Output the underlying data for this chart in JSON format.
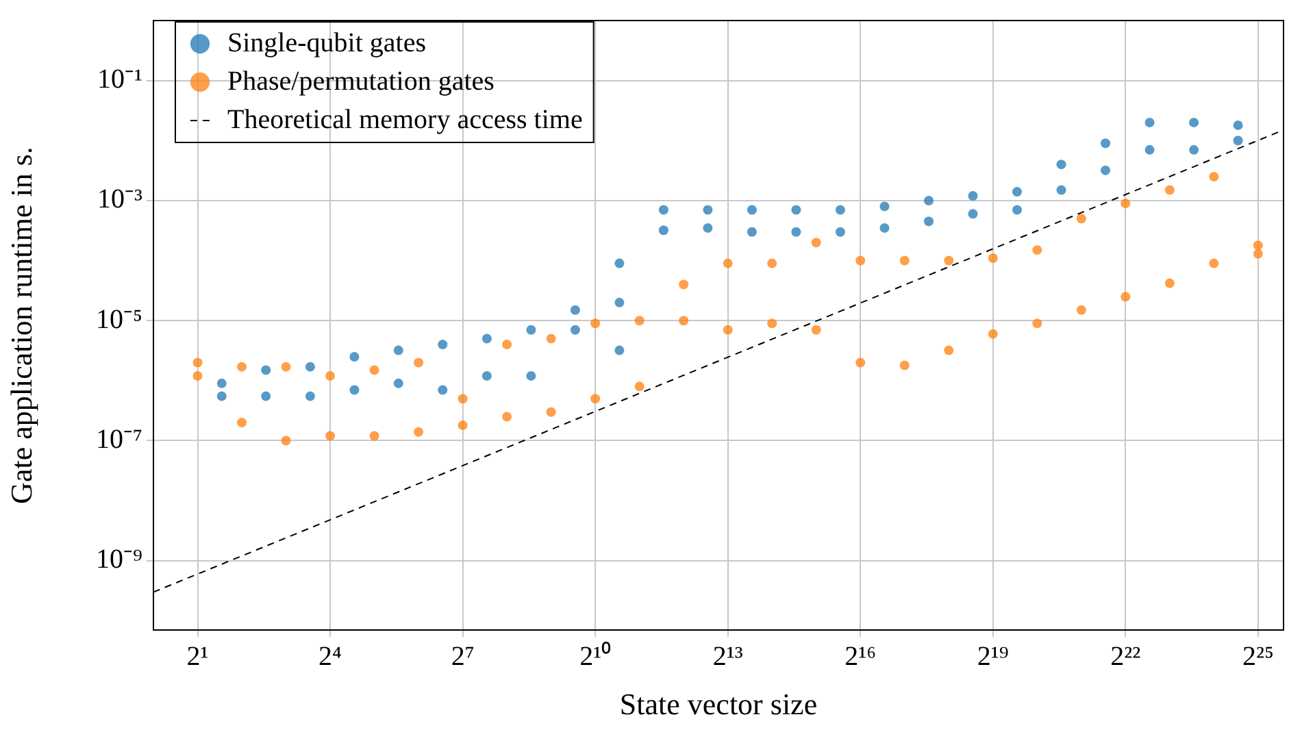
{
  "chart_data": {
    "type": "scatter",
    "xlabel": "State vector size",
    "ylabel": "Gate application runtime in s.",
    "log": "xy",
    "grid": true,
    "legend": "top left",
    "marker": "circle",
    "xlim": [
      1,
      50000000
    ],
    "ylim": [
      7e-11,
      1
    ],
    "xticks": [
      {
        "value": 2,
        "label": "2¹"
      },
      {
        "value": 16,
        "label": "2⁴"
      },
      {
        "value": 128,
        "label": "2⁷"
      },
      {
        "value": 1024,
        "label": "2¹⁰"
      },
      {
        "value": 8192,
        "label": "2¹³"
      },
      {
        "value": 65536,
        "label": "2¹⁶"
      },
      {
        "value": 524288,
        "label": "2¹⁹"
      },
      {
        "value": 4194304,
        "label": "2²²"
      },
      {
        "value": 33554432,
        "label": "2²⁵"
      }
    ],
    "yticks": [
      {
        "value": 1e-09,
        "label": "10⁻⁹"
      },
      {
        "value": 1e-07,
        "label": "10⁻⁷"
      },
      {
        "value": 1e-05,
        "label": "10⁻⁵"
      },
      {
        "value": 0.001,
        "label": "10⁻³"
      },
      {
        "value": 0.1,
        "label": "10⁻¹"
      }
    ],
    "series": [
      {
        "name": "Single-qubit gates",
        "color": "#1f77b4",
        "x": [
          2.92,
          2.92,
          5.84,
          5.84,
          11.7,
          11.7,
          23.4,
          23.4,
          46.7,
          46.7,
          93.4,
          93.4,
          187,
          187,
          374,
          374,
          748,
          748,
          1495,
          1495,
          1495,
          2990,
          2990,
          5980,
          5980,
          11960,
          11960,
          23920,
          23920,
          47840,
          47840,
          95690,
          95690,
          191400,
          191400,
          382700,
          382700,
          765500,
          765500,
          1531000,
          1531000,
          3062000,
          3062000,
          6124000,
          6124000,
          12250000,
          12250000,
          24490000,
          24490000
        ],
        "values": [
          5.5e-07,
          9e-07,
          5.5e-07,
          1.5e-06,
          5.5e-07,
          1.7e-06,
          7e-07,
          2.5e-06,
          9e-07,
          3.2e-06,
          7e-07,
          4e-06,
          1.2e-06,
          5e-06,
          1.2e-06,
          7e-06,
          7e-06,
          1.5e-05,
          3.2e-06,
          2e-05,
          9e-05,
          0.00032,
          0.0007,
          0.00035,
          0.0007,
          0.0003,
          0.0007,
          0.0003,
          0.0007,
          0.0003,
          0.0007,
          0.00035,
          0.0008,
          0.00045,
          0.001,
          0.0006,
          0.0012,
          0.0007,
          0.0014,
          0.0015,
          0.004,
          0.0032,
          0.009,
          0.007,
          0.02,
          0.007,
          0.02,
          0.01,
          0.018
        ]
      },
      {
        "name": "Phase/permutation gates",
        "color": "#ff7f0e",
        "x": [
          2,
          2,
          4,
          4,
          8,
          8,
          16,
          16,
          32,
          32,
          64,
          64,
          128,
          128,
          256,
          256,
          512,
          512,
          1024,
          1024,
          2048,
          2048,
          4096,
          4096,
          8192,
          8192,
          16384,
          16384,
          32768,
          32768,
          65536,
          65536,
          131072,
          131072,
          262144,
          262144,
          524288,
          524288,
          1048576,
          1048576,
          2097152,
          2097152,
          4194304,
          4194304,
          8388608,
          8388608,
          16777216,
          16777216,
          33554432,
          33554432
        ],
        "values": [
          1.2e-06,
          2e-06,
          2e-07,
          1.7e-06,
          1e-07,
          1.7e-06,
          1.2e-07,
          1.2e-06,
          1.2e-07,
          1.5e-06,
          1.4e-07,
          2e-06,
          1.8e-07,
          5e-07,
          2.5e-07,
          4e-06,
          3e-07,
          5e-06,
          5e-07,
          9e-06,
          8e-07,
          1e-05,
          1e-05,
          4e-05,
          7e-06,
          9e-05,
          9e-06,
          9e-05,
          7e-06,
          0.0002,
          2e-06,
          0.0001,
          1.8e-06,
          0.0001,
          3.2e-06,
          0.0001,
          6e-06,
          0.00011,
          9e-06,
          0.00015,
          1.5e-05,
          0.0005,
          2.5e-05,
          0.0009,
          4.2e-05,
          0.0015,
          9e-05,
          0.0025,
          0.00013,
          0.00018
        ]
      },
      {
        "name": "Theoretical memory access time",
        "type": "line",
        "marker": "none",
        "line_style": "dashed",
        "color": "#000000",
        "x": [
          1,
          50000000
        ],
        "values": [
          3e-10,
          0.015
        ]
      }
    ]
  }
}
